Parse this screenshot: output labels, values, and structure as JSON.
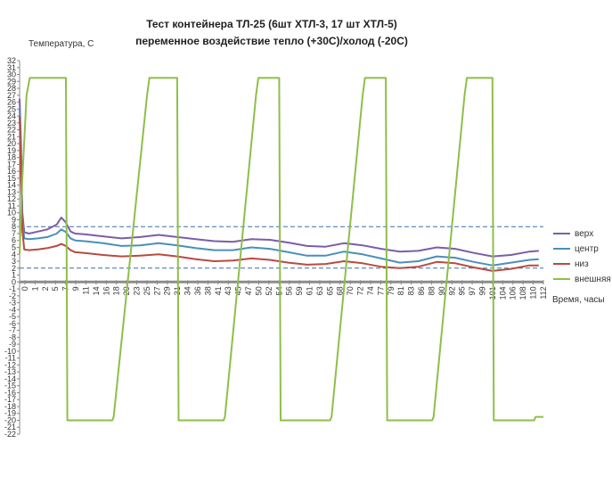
{
  "chart_data": {
    "type": "line",
    "title_lines": [
      "Тест контейнера ТЛ-25 (6шт ХТЛ-3, 17 шт ХТЛ-5)",
      "переменное воздействие тепло (+30С)/холод (-20С)"
    ],
    "ylabel": "Температура, С",
    "xlabel": "Время, часы",
    "ylim": [
      -22,
      32
    ],
    "xlim": [
      0,
      113
    ],
    "y_ticks": [
      -22,
      -21,
      -20,
      -19,
      -18,
      -17,
      -16,
      -15,
      -14,
      -13,
      -12,
      -11,
      -10,
      -9,
      -8,
      -7,
      -6,
      -5,
      -4,
      -3,
      -2,
      -1,
      0,
      1,
      2,
      3,
      4,
      5,
      6,
      7,
      8,
      9,
      10,
      11,
      12,
      13,
      14,
      15,
      16,
      17,
      18,
      19,
      20,
      21,
      22,
      23,
      24,
      25,
      26,
      27,
      28,
      29,
      30,
      31,
      32
    ],
    "x_tick_labels": [
      "0",
      "1",
      "2",
      "5",
      "7",
      "9",
      "11",
      "14",
      "16",
      "18",
      "20",
      "23",
      "25",
      "27",
      "29",
      "31",
      "34",
      "36",
      "38",
      "41",
      "43",
      "45",
      "47",
      "50",
      "52",
      "54",
      "56",
      "59",
      "61",
      "63",
      "65",
      "68",
      "70",
      "72",
      "74",
      "77",
      "79",
      "81",
      "83",
      "86",
      "88",
      "90",
      "92",
      "95",
      "97",
      "99",
      "101",
      "104",
      "106",
      "108",
      "110",
      "112"
    ],
    "reference_lines": [
      8,
      2
    ],
    "grid": false,
    "legend_position": "right",
    "series": [
      {
        "name": "верх",
        "color": "#7b5ea7",
        "x": [
          0,
          0.3,
          0.6,
          1,
          2,
          4,
          6,
          8,
          9,
          10,
          11,
          12,
          14,
          18,
          22,
          26,
          30,
          34,
          38,
          42,
          46,
          50,
          54,
          58,
          62,
          66,
          70,
          74,
          78,
          82,
          86,
          90,
          94,
          98,
          102,
          106,
          110,
          112
        ],
        "y": [
          26.5,
          20,
          10,
          7.2,
          7.0,
          7.3,
          7.6,
          8.3,
          9.3,
          8.6,
          7.3,
          7.0,
          6.9,
          6.6,
          6.3,
          6.5,
          6.8,
          6.5,
          6.2,
          5.9,
          5.8,
          6.2,
          6.1,
          5.7,
          5.2,
          5.1,
          5.6,
          5.3,
          4.8,
          4.4,
          4.5,
          5.0,
          4.8,
          4.2,
          3.7,
          3.9,
          4.4,
          4.5
        ]
      },
      {
        "name": "центр",
        "color": "#4a90b8",
        "x": [
          0,
          0.3,
          0.6,
          1,
          2,
          4,
          6,
          8,
          9,
          10,
          11,
          12,
          14,
          18,
          22,
          26,
          30,
          34,
          38,
          42,
          46,
          50,
          54,
          58,
          62,
          66,
          70,
          74,
          78,
          82,
          86,
          90,
          94,
          98,
          102,
          106,
          110,
          112
        ],
        "y": [
          25,
          17.5,
          9,
          6.3,
          6.2,
          6.3,
          6.5,
          7.0,
          7.6,
          7.2,
          6.3,
          6.0,
          5.9,
          5.6,
          5.2,
          5.3,
          5.6,
          5.3,
          4.9,
          4.6,
          4.6,
          5.0,
          4.8,
          4.3,
          3.8,
          3.8,
          4.4,
          4.0,
          3.4,
          2.8,
          3.0,
          3.7,
          3.5,
          2.9,
          2.4,
          2.8,
          3.2,
          3.3
        ]
      },
      {
        "name": "низ",
        "color": "#b94a40",
        "x": [
          0,
          0.3,
          0.6,
          1,
          2,
          4,
          6,
          8,
          9,
          10,
          11,
          12,
          14,
          18,
          22,
          26,
          30,
          34,
          38,
          42,
          46,
          50,
          54,
          58,
          62,
          66,
          70,
          74,
          78,
          82,
          86,
          90,
          94,
          98,
          102,
          106,
          110,
          112
        ],
        "y": [
          24,
          15,
          7.5,
          4.7,
          4.6,
          4.7,
          4.9,
          5.2,
          5.5,
          5.2,
          4.6,
          4.3,
          4.2,
          3.9,
          3.7,
          3.8,
          4.0,
          3.7,
          3.3,
          3.0,
          3.1,
          3.4,
          3.2,
          2.8,
          2.5,
          2.6,
          3.0,
          2.7,
          2.2,
          2.0,
          2.2,
          2.9,
          2.7,
          2.1,
          1.6,
          1.9,
          2.4,
          2.4
        ]
      },
      {
        "name": "внешняя",
        "color": "#8fbe4a",
        "x": [
          0,
          0.6,
          1.5,
          2.2,
          10,
          10.3,
          20,
          20.3,
          27.5,
          28,
          34,
          34.3,
          44,
          44.3,
          51,
          51.5,
          56,
          56.3,
          67,
          67.3,
          74,
          74.5,
          79,
          79.3,
          89,
          89.3,
          96,
          96.5,
          102,
          102.3,
          111,
          111.3,
          113
        ],
        "y": [
          4,
          15,
          27,
          29.5,
          29.5,
          -20,
          -20,
          -19.5,
          27,
          29.5,
          29.5,
          -20,
          -20,
          -19.5,
          27,
          29.5,
          29.5,
          -20,
          -20,
          -19.5,
          27,
          29.5,
          29.5,
          -20,
          -20,
          -19.5,
          27,
          29.5,
          29.5,
          -20,
          -20,
          -19.5,
          -19.5
        ]
      }
    ]
  }
}
